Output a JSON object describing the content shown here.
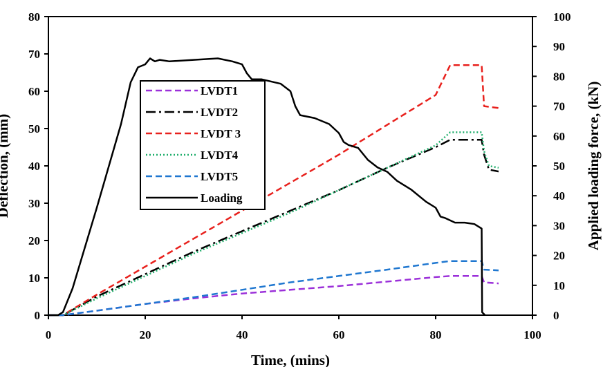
{
  "chart_data": {
    "type": "line",
    "xlabel": "Time, (mins)",
    "ylabel_left": "Deflection, (mm)",
    "ylabel_right": "Applied loading force, (kN)",
    "xlim": [
      0,
      100
    ],
    "ylim_left": [
      0,
      80
    ],
    "ylim_right": [
      0,
      100
    ],
    "x_ticks": [
      "0",
      "20",
      "40",
      "60",
      "80",
      "100"
    ],
    "y_left_ticks": [
      "0",
      "10",
      "20",
      "30",
      "40",
      "50",
      "60",
      "70",
      "80"
    ],
    "y_right_ticks": [
      "0",
      "10",
      "20",
      "30",
      "40",
      "50",
      "60",
      "70",
      "80",
      "90",
      "100"
    ],
    "grid": false,
    "legend_position": "upper-left",
    "series": [
      {
        "name": "LVDT1",
        "axis": "left",
        "color": "#9b30d9",
        "dash": "dashed",
        "x": [
          0,
          3,
          10,
          20,
          30,
          40,
          50,
          60,
          70,
          80,
          83,
          89.5,
          90,
          93
        ],
        "y": [
          0,
          0,
          1.2,
          3,
          4.5,
          5.8,
          6.8,
          7.8,
          9,
          10.2,
          10.5,
          10.5,
          8.8,
          8.5
        ]
      },
      {
        "name": "LVDT2",
        "axis": "left",
        "color": "#000000",
        "dash": "dash-dot",
        "x": [
          0,
          3,
          10,
          20,
          30,
          40,
          50,
          60,
          70,
          80,
          83,
          89.5,
          90,
          91,
          93
        ],
        "y": [
          0,
          0,
          5,
          11,
          17,
          22.5,
          28,
          33.5,
          39.5,
          45,
          47,
          47,
          43,
          39,
          38.5
        ]
      },
      {
        "name": "LVDT 3",
        "axis": "left",
        "color": "#e8201c",
        "dash": "dashed",
        "x": [
          0,
          3,
          10,
          20,
          30,
          40,
          50,
          60,
          70,
          80,
          83,
          89.5,
          90,
          93
        ],
        "y": [
          0,
          0,
          5.5,
          13,
          20.5,
          28,
          35.5,
          43,
          51,
          59,
          67,
          67,
          56,
          55.5
        ]
      },
      {
        "name": "LVDT4",
        "axis": "left",
        "color": "#1fae6b",
        "dash": "dotted",
        "x": [
          0,
          3,
          10,
          20,
          30,
          40,
          50,
          60,
          70,
          80,
          83,
          89.5,
          90,
          91,
          93
        ],
        "y": [
          0,
          0,
          4.5,
          10.5,
          16.5,
          22,
          27.5,
          33.5,
          39.5,
          45.5,
          49,
          49,
          44,
          40,
          39.5
        ]
      },
      {
        "name": "LVDT5",
        "axis": "left",
        "color": "#1f77d0",
        "dash": "dashed",
        "x": [
          0,
          3,
          10,
          20,
          30,
          40,
          50,
          60,
          70,
          80,
          83,
          89.5,
          90,
          93
        ],
        "y": [
          0,
          0,
          1.2,
          3,
          4.8,
          6.8,
          8.8,
          10.5,
          12.2,
          14,
          14.5,
          14.5,
          12.2,
          12
        ]
      },
      {
        "name": "Loading",
        "axis": "right",
        "color": "#000000",
        "dash": "solid",
        "x": [
          0,
          2,
          3,
          5,
          10,
          15,
          17,
          18.5,
          20,
          21,
          22,
          23,
          25,
          30,
          35,
          38,
          40,
          41,
          42,
          44,
          48,
          50,
          51,
          52,
          55,
          58,
          60,
          61,
          62,
          64,
          66,
          68,
          70,
          72,
          75,
          78,
          80,
          81,
          82,
          84,
          86,
          88,
          89.5,
          89.6,
          90.2
        ],
        "y": [
          0,
          0,
          1,
          9,
          36,
          64,
          78,
          83,
          84,
          86,
          85,
          85.5,
          85,
          85.5,
          86,
          85,
          84,
          81,
          79,
          79,
          77.5,
          75,
          70,
          67,
          66,
          64,
          61,
          58,
          57,
          56,
          52,
          49.5,
          48,
          45,
          42,
          38,
          36,
          33,
          32.5,
          31,
          31,
          30.5,
          29,
          1,
          0
        ]
      }
    ]
  }
}
